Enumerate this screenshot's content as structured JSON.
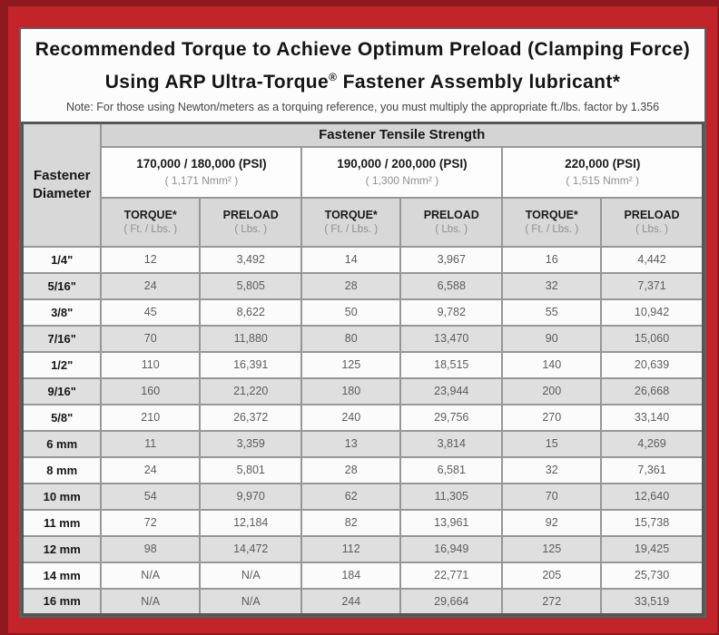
{
  "poster": {
    "title_line1": "Recommended Torque to Achieve Optimum Preload (Clamping Force)",
    "title_line2_prefix": "Using ARP Ultra-Torque",
    "title_line2_reg_mark": "®",
    "title_line2_suffix": " Fastener Assembly lubricant*",
    "note": "Note: For those using Newton/meters as a torquing reference, you must multiply the appropriate ft./lbs. factor by 1.356"
  },
  "table": {
    "corner_header": "Fastener Diameter",
    "group_header": "Fastener Tensile Strength",
    "strength_columns": [
      {
        "psi": "170,000 / 180,000 (PSI)",
        "nmm": "( 1,171 Nmm² )"
      },
      {
        "psi": "190,000 / 200,000 (PSI)",
        "nmm": "( 1,300 Nmm² )"
      },
      {
        "psi": "220,000 (PSI)",
        "nmm": "( 1,515 Nmm² )"
      }
    ],
    "sub_headers": {
      "torque_label": "TORQUE*",
      "torque_unit": "( Ft. / Lbs. )",
      "preload_label": "PRELOAD",
      "preload_unit": "( Lbs. )"
    },
    "rows": [
      {
        "diameter": "1/4\"",
        "values": [
          "12",
          "3,492",
          "14",
          "3,967",
          "16",
          "4,442"
        ]
      },
      {
        "diameter": "5/16\"",
        "values": [
          "24",
          "5,805",
          "28",
          "6,588",
          "32",
          "7,371"
        ]
      },
      {
        "diameter": "3/8\"",
        "values": [
          "45",
          "8,622",
          "50",
          "9,782",
          "55",
          "10,942"
        ]
      },
      {
        "diameter": "7/16\"",
        "values": [
          "70",
          "11,880",
          "80",
          "13,470",
          "90",
          "15,060"
        ]
      },
      {
        "diameter": "1/2\"",
        "values": [
          "110",
          "16,391",
          "125",
          "18,515",
          "140",
          "20,639"
        ]
      },
      {
        "diameter": "9/16\"",
        "values": [
          "160",
          "21,220",
          "180",
          "23,944",
          "200",
          "26,668"
        ]
      },
      {
        "diameter": "5/8\"",
        "values": [
          "210",
          "26,372",
          "240",
          "29,756",
          "270",
          "33,140"
        ]
      },
      {
        "diameter": "6 mm",
        "values": [
          "11",
          "3,359",
          "13",
          "3,814",
          "15",
          "4,269"
        ]
      },
      {
        "diameter": "8 mm",
        "values": [
          "24",
          "5,801",
          "28",
          "6,581",
          "32",
          "7,361"
        ]
      },
      {
        "diameter": "10 mm",
        "values": [
          "54",
          "9,970",
          "62",
          "11,305",
          "70",
          "12,640"
        ]
      },
      {
        "diameter": "11 mm",
        "values": [
          "72",
          "12,184",
          "82",
          "13,961",
          "92",
          "15,738"
        ]
      },
      {
        "diameter": "12 mm",
        "values": [
          "98",
          "14,472",
          "112",
          "16,949",
          "125",
          "19,425"
        ]
      },
      {
        "diameter": "14 mm",
        "values": [
          "N/A",
          "N/A",
          "184",
          "22,771",
          "205",
          "25,730"
        ]
      },
      {
        "diameter": "16 mm",
        "values": [
          "N/A",
          "N/A",
          "244",
          "29,664",
          "272",
          "33,519"
        ]
      }
    ]
  },
  "colors": {
    "frame_red": "#c2242a",
    "edge_maroon": "#8e1a1f",
    "header_gray": "#d8d8d8",
    "stripe_gray": "#dfdfdf",
    "grid_gray": "#979797"
  }
}
